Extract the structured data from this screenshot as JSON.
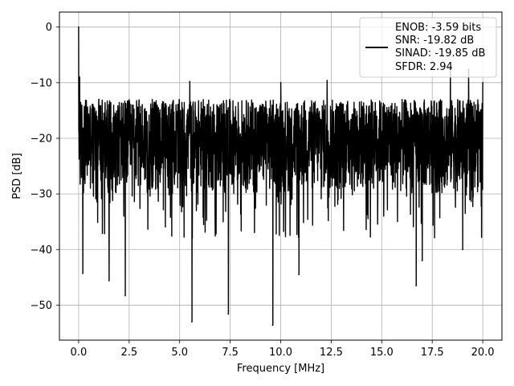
{
  "chart_data": {
    "type": "line",
    "title": "",
    "xlabel": "Frequency [MHz]",
    "ylabel": "PSD [dB]",
    "xlim": [
      -0.95,
      20.95
    ],
    "ylim": [
      -56.3,
      2.7
    ],
    "x_ticks": [
      0.0,
      2.5,
      5.0,
      7.5,
      10.0,
      12.5,
      15.0,
      17.5,
      20.0
    ],
    "x_tick_labels": [
      "0.0",
      "2.5",
      "5.0",
      "7.5",
      "10.0",
      "12.5",
      "15.0",
      "17.5",
      "20.0"
    ],
    "y_ticks": [
      0,
      -10,
      -20,
      -30,
      -40,
      -50
    ],
    "y_tick_labels": [
      "0",
      "−10",
      "−20",
      "−30",
      "−40",
      "−50"
    ],
    "grid": true,
    "legend_position": "top-right",
    "series": [
      {
        "color": "#000000",
        "legend_text": [
          "ENOB: -3.59 bits",
          "SNR: -19.82 dB",
          "SINAD: -19.85 dB",
          "SFDR: 2.94"
        ],
        "x_range": [
          0.0,
          20.0
        ],
        "approx_band": [
          -30,
          -13
        ],
        "peaks": [
          {
            "x": 0.0,
            "y": 0.0
          },
          {
            "x": 0.05,
            "y": -9.0
          },
          {
            "x": 1.0,
            "y": -13.0
          },
          {
            "x": 5.5,
            "y": -9.8
          },
          {
            "x": 10.0,
            "y": -10.0
          },
          {
            "x": 12.3,
            "y": -9.6
          },
          {
            "x": 18.4,
            "y": -7.4
          },
          {
            "x": 19.3,
            "y": -7.6
          },
          {
            "x": 20.0,
            "y": -10.0
          }
        ],
        "dips": [
          {
            "x": 0.2,
            "y": -44.3
          },
          {
            "x": 1.5,
            "y": -45.6
          },
          {
            "x": 2.3,
            "y": -48.3
          },
          {
            "x": 5.6,
            "y": -53.0
          },
          {
            "x": 7.4,
            "y": -51.6
          },
          {
            "x": 9.6,
            "y": -53.6
          },
          {
            "x": 10.9,
            "y": -44.5
          },
          {
            "x": 16.7,
            "y": -46.5
          },
          {
            "x": 17.0,
            "y": -42.0
          },
          {
            "x": 19.0,
            "y": -40.0
          }
        ]
      }
    ]
  }
}
